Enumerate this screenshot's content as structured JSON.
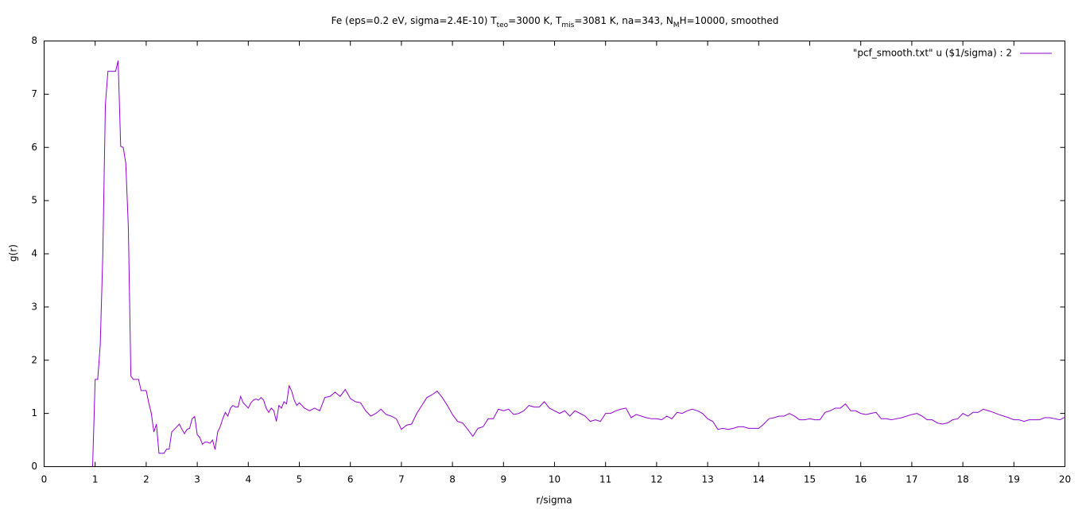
{
  "chart_data": {
    "type": "line",
    "title_parts": [
      {
        "text": "Fe (eps=0.2 eV, sigma=2.4E-10) T"
      },
      {
        "text": "teo",
        "sub": true
      },
      {
        "text": "=3000 K, T"
      },
      {
        "text": "mis",
        "sub": true
      },
      {
        "text": "=3081 K, na=343, N"
      },
      {
        "text": "M",
        "sub": true
      },
      {
        "text": "H=10000, smoothed"
      }
    ],
    "x_label": "r/sigma",
    "y_label": "g(r)",
    "xlim": [
      0,
      20
    ],
    "ylim": [
      0,
      8
    ],
    "xticks": [
      0,
      1,
      2,
      3,
      4,
      5,
      6,
      7,
      8,
      9,
      10,
      11,
      12,
      13,
      14,
      15,
      16,
      17,
      18,
      19,
      20
    ],
    "yticks": [
      0,
      1,
      2,
      3,
      4,
      5,
      6,
      7,
      8
    ],
    "legend": "top-right",
    "mirror_ticks": true,
    "series": [
      {
        "name": "\"pcf_smooth.txt\" u ($1/sigma) : 2",
        "color": "#9400d3",
        "x": [
          0.95,
          1.0,
          1.05,
          1.1,
          1.15,
          1.2,
          1.25,
          1.3,
          1.35,
          1.4,
          1.45,
          1.5,
          1.55,
          1.6,
          1.65,
          1.7,
          1.75,
          1.8,
          1.85,
          1.9,
          1.95,
          2.0,
          2.05,
          2.1,
          2.15,
          2.2,
          2.25,
          2.3,
          2.35,
          2.4,
          2.45,
          2.5,
          2.55,
          2.6,
          2.65,
          2.7,
          2.75,
          2.8,
          2.85,
          2.9,
          2.95,
          3.0,
          3.05,
          3.1,
          3.15,
          3.2,
          3.25,
          3.3,
          3.35,
          3.4,
          3.45,
          3.5,
          3.55,
          3.6,
          3.65,
          3.7,
          3.75,
          3.8,
          3.85,
          3.9,
          3.95,
          4.0,
          4.05,
          4.1,
          4.15,
          4.2,
          4.25,
          4.3,
          4.35,
          4.4,
          4.45,
          4.5,
          4.55,
          4.6,
          4.65,
          4.7,
          4.75,
          4.8,
          4.85,
          4.9,
          4.95,
          5.0,
          5.1,
          5.2,
          5.3,
          5.4,
          5.5,
          5.6,
          5.7,
          5.8,
          5.9,
          6.0,
          6.1,
          6.2,
          6.3,
          6.4,
          6.5,
          6.6,
          6.7,
          6.8,
          6.9,
          7.0,
          7.1,
          7.2,
          7.3,
          7.4,
          7.5,
          7.6,
          7.7,
          7.8,
          7.9,
          8.0,
          8.1,
          8.2,
          8.3,
          8.4,
          8.5,
          8.6,
          8.7,
          8.8,
          8.9,
          9.0,
          9.1,
          9.2,
          9.3,
          9.4,
          9.5,
          9.6,
          9.7,
          9.8,
          9.9,
          10.0,
          10.1,
          10.2,
          10.3,
          10.4,
          10.5,
          10.6,
          10.7,
          10.8,
          10.9,
          11.0,
          11.1,
          11.2,
          11.3,
          11.4,
          11.5,
          11.6,
          11.7,
          11.8,
          11.9,
          12.0,
          12.1,
          12.2,
          12.3,
          12.4,
          12.5,
          12.6,
          12.7,
          12.8,
          12.9,
          13.0,
          13.1,
          13.2,
          13.3,
          13.4,
          13.5,
          13.6,
          13.7,
          13.8,
          13.9,
          14.0,
          14.1,
          14.2,
          14.3,
          14.4,
          14.5,
          14.6,
          14.7,
          14.8,
          14.9,
          15.0,
          15.1,
          15.2,
          15.3,
          15.4,
          15.5,
          15.6,
          15.7,
          15.8,
          15.9,
          16.0,
          16.1,
          16.2,
          16.3,
          16.4,
          16.5,
          16.6,
          16.7,
          16.8,
          16.9,
          17.0,
          17.1,
          17.2,
          17.3,
          17.4,
          17.5,
          17.6,
          17.7,
          17.8,
          17.9,
          18.0,
          18.1,
          18.2,
          18.3,
          18.4,
          18.5,
          18.6,
          18.7,
          18.8,
          18.9,
          19.0,
          19.1,
          19.2,
          19.3,
          19.4,
          19.5,
          19.6,
          19.7,
          19.8,
          19.9,
          20.0
        ],
        "values": [
          0,
          1.64,
          1.64,
          2.3,
          4.0,
          6.8,
          7.43,
          7.43,
          7.43,
          7.43,
          7.63,
          6.02,
          6.0,
          5.7,
          4.5,
          1.7,
          1.64,
          1.64,
          1.64,
          1.43,
          1.43,
          1.43,
          1.2,
          1.0,
          0.65,
          0.8,
          0.25,
          0.25,
          0.25,
          0.33,
          0.33,
          0.65,
          0.7,
          0.75,
          0.8,
          0.7,
          0.62,
          0.7,
          0.72,
          0.9,
          0.94,
          0.6,
          0.55,
          0.42,
          0.46,
          0.46,
          0.44,
          0.5,
          0.32,
          0.65,
          0.75,
          0.9,
          1.02,
          0.95,
          1.1,
          1.15,
          1.12,
          1.12,
          1.32,
          1.2,
          1.15,
          1.1,
          1.2,
          1.25,
          1.27,
          1.25,
          1.3,
          1.25,
          1.1,
          1.02,
          1.1,
          1.05,
          0.85,
          1.15,
          1.1,
          1.22,
          1.18,
          1.52,
          1.42,
          1.25,
          1.15,
          1.2,
          1.1,
          1.05,
          1.1,
          1.05,
          1.3,
          1.32,
          1.4,
          1.32,
          1.45,
          1.28,
          1.22,
          1.2,
          1.05,
          0.95,
          1.0,
          1.08,
          0.98,
          0.95,
          0.9,
          0.7,
          0.78,
          0.8,
          1.0,
          1.15,
          1.3,
          1.35,
          1.42,
          1.3,
          1.15,
          0.98,
          0.85,
          0.82,
          0.7,
          0.57,
          0.72,
          0.75,
          0.9,
          0.9,
          1.08,
          1.05,
          1.08,
          0.98,
          1.0,
          1.05,
          1.15,
          1.12,
          1.12,
          1.22,
          1.1,
          1.05,
          1.0,
          1.05,
          0.95,
          1.05,
          1.0,
          0.95,
          0.85,
          0.88,
          0.85,
          1.0,
          1.0,
          1.05,
          1.08,
          1.1,
          0.92,
          0.98,
          0.95,
          0.92,
          0.9,
          0.9,
          0.88,
          0.95,
          0.9,
          1.02,
          1.0,
          1.05,
          1.08,
          1.05,
          1.0,
          0.9,
          0.85,
          0.7,
          0.72,
          0.7,
          0.72,
          0.75,
          0.75,
          0.72,
          0.72,
          0.72,
          0.8,
          0.9,
          0.92,
          0.95,
          0.95,
          1.0,
          0.95,
          0.88,
          0.88,
          0.9,
          0.88,
          0.88,
          1.02,
          1.05,
          1.1,
          1.1,
          1.18,
          1.05,
          1.05,
          1.0,
          0.98,
          1.0,
          1.02,
          0.9,
          0.9,
          0.88,
          0.9,
          0.92,
          0.95,
          0.98,
          1.0,
          0.95,
          0.88,
          0.88,
          0.82,
          0.8,
          0.82,
          0.88,
          0.9,
          1.0,
          0.95,
          1.02,
          1.02,
          1.08,
          1.05,
          1.02,
          0.98,
          0.95,
          0.92,
          0.88,
          0.88,
          0.85,
          0.88,
          0.88,
          0.88,
          0.92,
          0.92,
          0.9,
          0.88,
          0.93
        ]
      }
    ]
  }
}
